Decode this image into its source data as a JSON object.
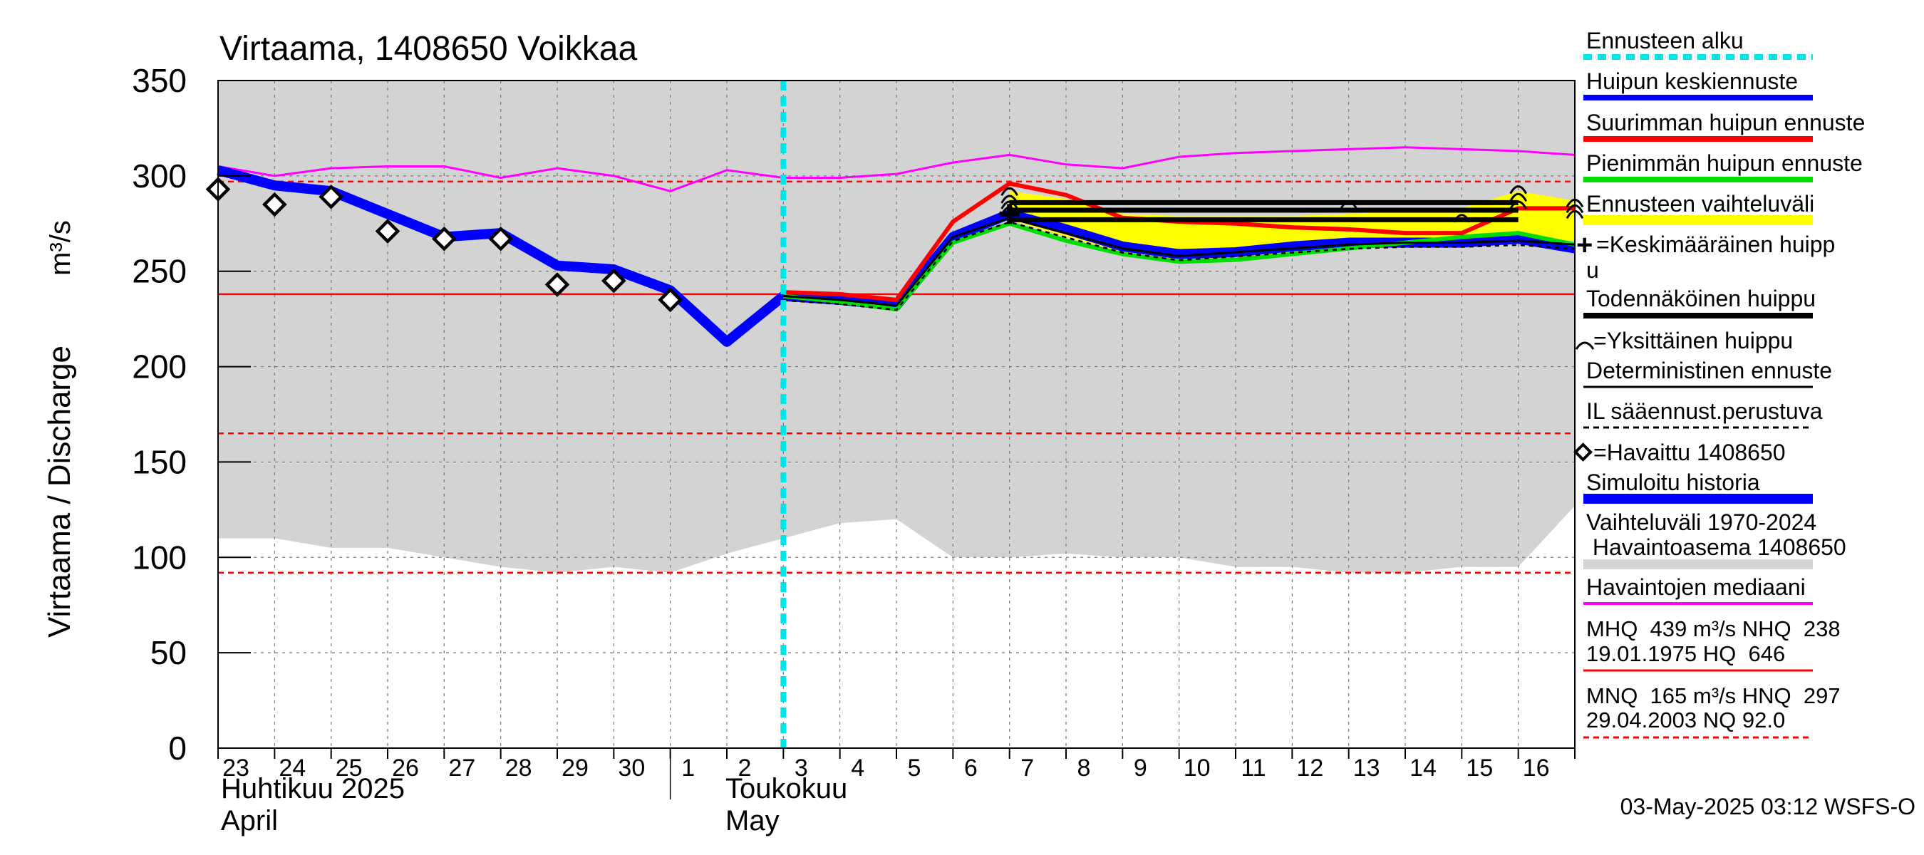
{
  "colors": {
    "forecast_start": "#00e6e6",
    "mean_peak": "#0000ff",
    "max_peak": "#ff0000",
    "min_peak": "#00dd00",
    "range": "#ffff00",
    "probable_peak": "#000000",
    "history_band": "#d3d3d3",
    "median": "#ff00ff",
    "observed": "#000000",
    "hq_line": "#ff0000"
  },
  "chart_data": {
    "type": "line",
    "title": "Virtaama, 1408650 Voikkaa",
    "ylabel": "Virtaama / Discharge",
    "yunit": "m³/s",
    "ylim": [
      0,
      350
    ],
    "yticks": [
      0,
      50,
      100,
      150,
      200,
      250,
      300,
      350
    ],
    "xlim": [
      0,
      24
    ],
    "x_tick_labels": [
      "23",
      "24",
      "25",
      "26",
      "27",
      "28",
      "29",
      "30",
      "1",
      "2",
      "3",
      "4",
      "5",
      "6",
      "7",
      "8",
      "9",
      "10",
      "11",
      "12",
      "13",
      "14",
      "15",
      "16"
    ],
    "month_labels": [
      {
        "x": 0,
        "fi": "Huhtikuu  2025",
        "en": "April"
      },
      {
        "x": 9,
        "fi": "Toukokuu",
        "en": "May"
      }
    ],
    "month_divider_x": 8,
    "forecast_start_x": 10,
    "reference_lines": [
      {
        "name": "HQ / HNQ",
        "y": 238,
        "style": "solid"
      },
      {
        "name": "HNQ",
        "y": 297,
        "style": "dashed"
      },
      {
        "name": "MNQ",
        "y": 165,
        "style": "dashed"
      },
      {
        "name": "NQ",
        "y": 92,
        "style": "dashed"
      }
    ],
    "history_band": {
      "x": [
        0,
        1,
        2,
        3,
        4,
        5,
        6,
        7,
        8,
        9,
        10,
        11,
        12,
        13,
        14,
        15,
        16,
        17,
        18,
        19,
        20,
        21,
        22,
        23,
        24
      ],
      "lower": [
        110,
        110,
        105,
        105,
        100,
        95,
        92,
        95,
        92,
        102,
        110,
        118,
        120,
        100,
        100,
        102,
        100,
        100,
        95,
        95,
        92,
        92,
        95,
        95,
        127
      ],
      "upper": [
        350,
        350,
        350,
        350,
        350,
        350,
        350,
        350,
        350,
        350,
        350,
        350,
        350,
        350,
        350,
        350,
        350,
        350,
        350,
        350,
        350,
        350,
        350,
        350,
        350
      ]
    },
    "series": [
      {
        "name": "Havaintojen mediaani",
        "color": "#ff00ff",
        "width": 3,
        "x": [
          0,
          1,
          2,
          3,
          4,
          5,
          6,
          7,
          8,
          9,
          10,
          11,
          12,
          13,
          14,
          15,
          16,
          17,
          18,
          19,
          20,
          21,
          22,
          23,
          24
        ],
        "y": [
          305,
          300,
          304,
          305,
          305,
          299,
          304,
          300,
          292,
          303,
          299,
          299,
          301,
          307,
          311,
          306,
          304,
          310,
          312,
          313,
          314,
          315,
          314,
          313,
          311
        ]
      },
      {
        "name": "Simuloitu historia",
        "color": "#0000ff",
        "width": 14,
        "x": [
          0,
          1,
          2,
          3,
          4,
          5,
          6,
          7,
          8,
          9,
          10,
          11,
          12,
          13,
          14,
          15,
          16,
          17,
          18,
          19,
          20,
          21,
          22,
          23,
          24
        ],
        "y": [
          303,
          295,
          292,
          280,
          268,
          270,
          253,
          251,
          240,
          213,
          237,
          235,
          232,
          268,
          280,
          272,
          263,
          259,
          260,
          263,
          265,
          265,
          265,
          267,
          262
        ]
      },
      {
        "name": "Pienimmän huipun ennuste",
        "color": "#00dd00",
        "width": 6,
        "x": [
          10,
          11,
          12,
          13,
          14,
          15,
          16,
          17,
          18,
          19,
          20,
          21,
          22,
          23,
          24
        ],
        "y": [
          237,
          234,
          230,
          265,
          275,
          266,
          259,
          255,
          256,
          259,
          262,
          265,
          268,
          270,
          264
        ]
      },
      {
        "name": "Suurimman huipun ennuste",
        "color": "#ff0000",
        "width": 6,
        "x": [
          10,
          11,
          12,
          13,
          14,
          15,
          16,
          17,
          18,
          19,
          20,
          21,
          22,
          23,
          24
        ],
        "y": [
          239,
          238,
          235,
          276,
          296,
          290,
          278,
          276,
          275,
          273,
          272,
          270,
          270,
          283,
          283
        ]
      },
      {
        "name": "Deterministinen ennuste",
        "color": "#000000",
        "width": 3,
        "x": [
          10,
          11,
          12,
          13,
          14,
          15,
          16,
          17,
          18,
          19,
          20,
          21,
          22,
          23,
          24
        ],
        "y": [
          237,
          235,
          232,
          268,
          278,
          270,
          262,
          258,
          260,
          262,
          264,
          265,
          265,
          266,
          264
        ]
      }
    ],
    "forecast_range": {
      "x": [
        14,
        15,
        16,
        17,
        18,
        19,
        20,
        21,
        22,
        23,
        24
      ],
      "lower": [
        277,
        268,
        260,
        255,
        256,
        258,
        262,
        264,
        265,
        268,
        266
      ],
      "upper": [
        292,
        288,
        280,
        279,
        279,
        279,
        280,
        282,
        283,
        292,
        287
      ]
    },
    "probable_peaks": [
      {
        "x_from": 14,
        "x_to": 23,
        "y": 286
      },
      {
        "x_from": 14,
        "x_to": 23,
        "y": 282
      },
      {
        "x_from": 14,
        "x_to": 23,
        "y": 277
      }
    ],
    "individual_peaks": [
      {
        "x": 14,
        "y": 292
      },
      {
        "x": 14,
        "y": 288
      },
      {
        "x": 14,
        "y": 285
      },
      {
        "x": 14,
        "y": 282
      },
      {
        "x": 20,
        "y": 285
      },
      {
        "x": 22,
        "y": 278
      },
      {
        "x": 23,
        "y": 293
      },
      {
        "x": 23,
        "y": 289
      },
      {
        "x": 23,
        "y": 285
      },
      {
        "x": 24,
        "y": 286
      },
      {
        "x": 24,
        "y": 283
      },
      {
        "x": 24,
        "y": 280
      }
    ],
    "mean_peak": {
      "x": 14,
      "y": 280
    },
    "observed": {
      "name": "Havaittu 1408650",
      "x": [
        0,
        1,
        2,
        3,
        4,
        5,
        6,
        7,
        8
      ],
      "y": [
        293,
        285,
        289,
        271,
        267,
        267,
        243,
        245,
        235
      ]
    }
  },
  "legend": {
    "forecast_start": "Ennusteen alku",
    "mean_peak": "Huipun keskiennuste",
    "max_peak": "Suurimman huipun ennuste",
    "min_peak": "Pienimmän huipun ennuste",
    "range": "Ennusteen vaihteluväli",
    "avg_peak_line1": "=Keskimääräinen huipp",
    "avg_peak_line2": "u",
    "probable_peak": "Todennäköinen huippu",
    "single_peak": "=Yksittäinen huippu",
    "deterministic": "Deterministinen ennuste",
    "il_forecast": "IL sääennust.perustuva",
    "observed": "=Havaittu 1408650",
    "sim_history": "Simuloitu historia",
    "range_history_line1": "Vaihteluväli 1970-2024",
    "range_history_line2": " Havaintoasema 1408650",
    "median": "Havaintojen mediaani",
    "mhq_line1": "MHQ  439 m³/s NHQ  238",
    "mhq_line2": "19.01.1975 HQ  646",
    "mnq_line1": "MNQ  165 m³/s HNQ  297",
    "mnq_line2": "29.04.2003 NQ 92.0"
  },
  "footer": "03-May-2025 03:12 WSFS-O"
}
